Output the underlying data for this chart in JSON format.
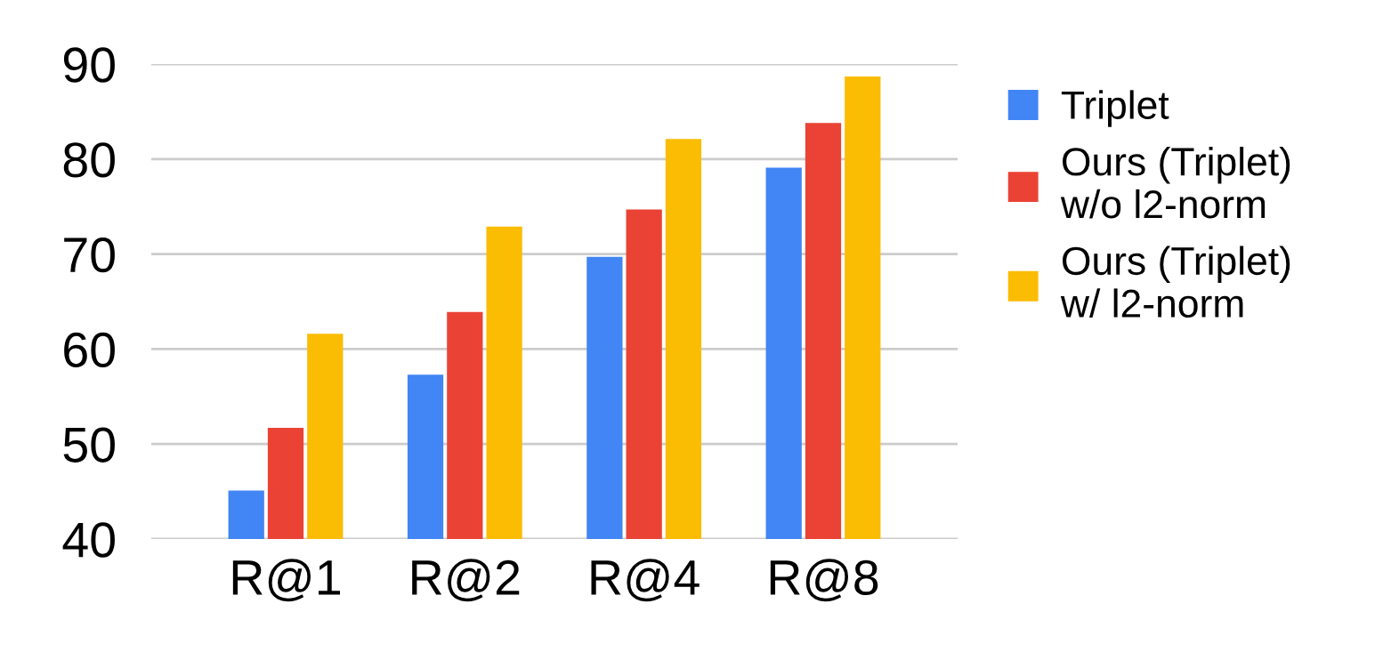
{
  "chart_data": {
    "type": "bar",
    "categories": [
      "R@1",
      "R@2",
      "R@4",
      "R@8"
    ],
    "series": [
      {
        "name": "Triplet",
        "color": "#4285f4",
        "values": [
          45.1,
          57.3,
          69.7,
          79.1
        ]
      },
      {
        "name": "Ours (Triplet)\nw/o l2-norm",
        "color": "#ea4335",
        "values": [
          51.7,
          63.9,
          74.7,
          83.8
        ]
      },
      {
        "name": "Ours (Triplet)\nw/ l2-norm",
        "color": "#fbbc04",
        "values": [
          61.6,
          72.9,
          82.1,
          88.7
        ]
      }
    ],
    "ylim": [
      40,
      90
    ],
    "yticks": [
      40,
      50,
      60,
      70,
      80,
      90
    ],
    "grid": "y",
    "legend": "right"
  }
}
